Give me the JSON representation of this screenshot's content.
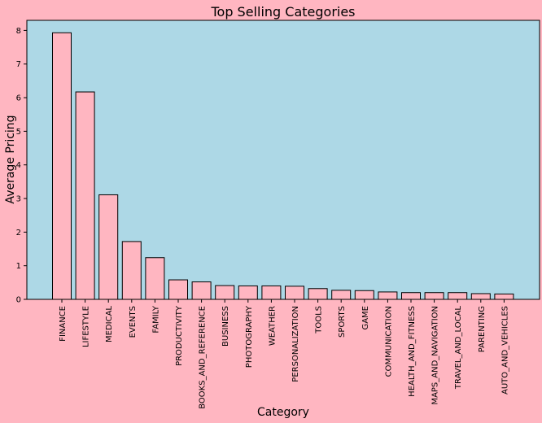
{
  "chart_data": {
    "type": "bar",
    "title": "Top Selling Categories",
    "xlabel": "Category",
    "ylabel": "Average Pricing",
    "categories": [
      "FINANCE",
      "LIFESTYLE",
      "MEDICAL",
      "EVENTS",
      "FAMILY",
      "PRODUCTIVITY",
      "BOOKS_AND_REFERENCE",
      "BUSINESS",
      "PHOTOGRAPHY",
      "WEATHER",
      "PERSONALIZATION",
      "TOOLS",
      "SPORTS",
      "GAME",
      "COMMUNICATION",
      "HEALTH_AND_FITNESS",
      "MAPS_AND_NAVIGATION",
      "TRAVEL_AND_LOCAL",
      "PARENTING",
      "AUTO_AND_VEHICLES"
    ],
    "values": [
      7.93,
      6.17,
      3.11,
      1.72,
      1.24,
      0.58,
      0.52,
      0.41,
      0.4,
      0.4,
      0.39,
      0.32,
      0.27,
      0.26,
      0.22,
      0.2,
      0.2,
      0.2,
      0.17,
      0.16
    ],
    "ylim": [
      0,
      8.3
    ],
    "yticks": [
      0,
      1,
      2,
      3,
      4,
      5,
      6,
      7,
      8
    ],
    "grid": false,
    "colors": {
      "figure_bg": "#ffb6c1",
      "plot_bg": "#add8e6",
      "bar_fill": "#ffb6c1",
      "bar_edge": "#000000"
    }
  }
}
